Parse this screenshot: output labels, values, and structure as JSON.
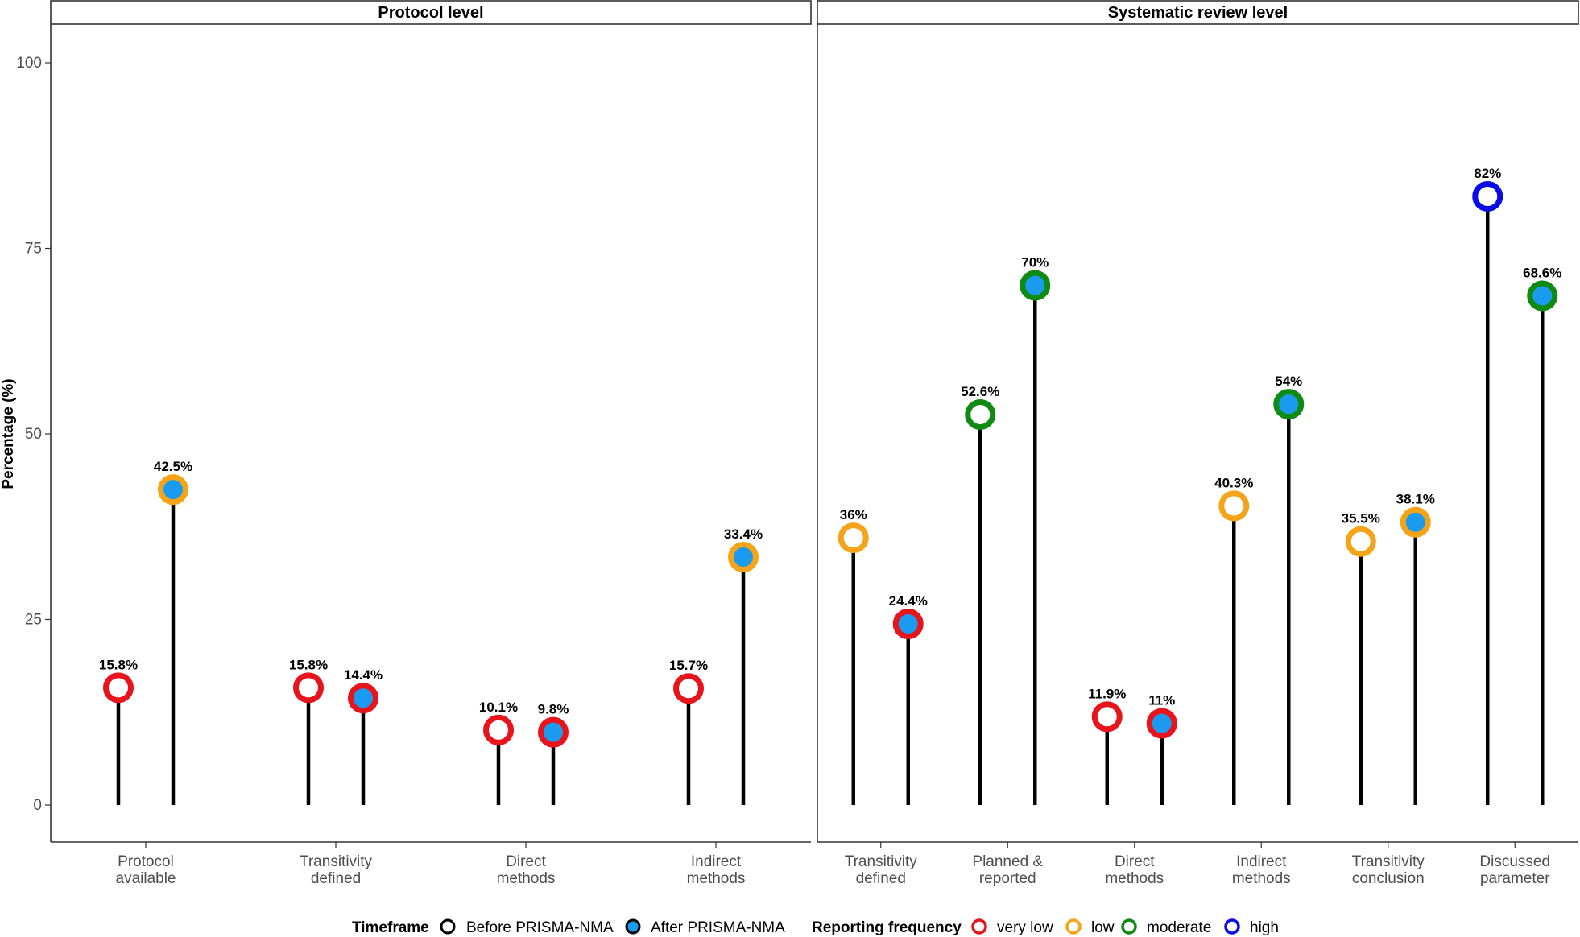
{
  "chart_data": {
    "type": "lollipop",
    "ylabel": "Percentage (%)",
    "ylim": [
      -5,
      105
    ],
    "yticks": [
      0,
      25,
      50,
      75,
      100
    ],
    "panels": [
      {
        "title": "Protocol level",
        "categories": [
          {
            "label": [
              "Protocol",
              "available"
            ],
            "before": {
              "value": 15.8,
              "label": "15.8%",
              "frequency": "very low"
            },
            "after": {
              "value": 42.5,
              "label": "42.5%",
              "frequency": "low"
            }
          },
          {
            "label": [
              "Transitivity",
              "defined"
            ],
            "before": {
              "value": 15.8,
              "label": "15.8%",
              "frequency": "very low"
            },
            "after": {
              "value": 14.4,
              "label": "14.4%",
              "frequency": "very low"
            }
          },
          {
            "label": [
              "Direct",
              "methods"
            ],
            "before": {
              "value": 10.1,
              "label": "10.1%",
              "frequency": "very low"
            },
            "after": {
              "value": 9.8,
              "label": "9.8%",
              "frequency": "very low"
            }
          },
          {
            "label": [
              "Indirect",
              "methods"
            ],
            "before": {
              "value": 15.7,
              "label": "15.7%",
              "frequency": "very low"
            },
            "after": {
              "value": 33.4,
              "label": "33.4%",
              "frequency": "low"
            }
          }
        ]
      },
      {
        "title": "Systematic review level",
        "categories": [
          {
            "label": [
              "Transitivity",
              "defined"
            ],
            "before": {
              "value": 36,
              "label": "36%",
              "frequency": "low"
            },
            "after": {
              "value": 24.4,
              "label": "24.4%",
              "frequency": "very low"
            }
          },
          {
            "label": [
              "Planned &",
              "reported"
            ],
            "before": {
              "value": 52.6,
              "label": "52.6%",
              "frequency": "moderate"
            },
            "after": {
              "value": 70,
              "label": "70%",
              "frequency": "moderate"
            }
          },
          {
            "label": [
              "Direct",
              "methods"
            ],
            "before": {
              "value": 11.9,
              "label": "11.9%",
              "frequency": "very low"
            },
            "after": {
              "value": 11,
              "label": "11%",
              "frequency": "very low"
            }
          },
          {
            "label": [
              "Indirect",
              "methods"
            ],
            "before": {
              "value": 40.3,
              "label": "40.3%",
              "frequency": "low"
            },
            "after": {
              "value": 54,
              "label": "54%",
              "frequency": "moderate"
            }
          },
          {
            "label": [
              "Transitivity",
              "conclusion"
            ],
            "before": {
              "value": 35.5,
              "label": "35.5%",
              "frequency": "low"
            },
            "after": {
              "value": 38.1,
              "label": "38.1%",
              "frequency": "low"
            }
          },
          {
            "label": [
              "Discussed",
              "parameter"
            ],
            "before": {
              "value": 82,
              "label": "82%",
              "frequency": "high"
            },
            "after": {
              "value": 68.6,
              "label": "68.6%",
              "frequency": "moderate"
            }
          }
        ]
      }
    ],
    "legend": {
      "placement": "bottom",
      "timeframe": {
        "title": "Timeframe",
        "items": [
          {
            "label": "Before PRISMA-NMA",
            "fill": "#ffffff"
          },
          {
            "label": "After PRISMA-NMA",
            "fill": "#1a9bf0"
          }
        ]
      },
      "frequency": {
        "title": "Reporting frequency",
        "items": [
          {
            "label": "very low",
            "color": "#e8141c"
          },
          {
            "label": "low",
            "color": "#f5a41a"
          },
          {
            "label": "moderate",
            "color": "#0f8a12"
          },
          {
            "label": "high",
            "color": "#0b0be6"
          }
        ]
      }
    },
    "colors": {
      "after_fill": "#1a9bf0",
      "before_fill": "#ffffff",
      "stem": "#000000"
    }
  }
}
